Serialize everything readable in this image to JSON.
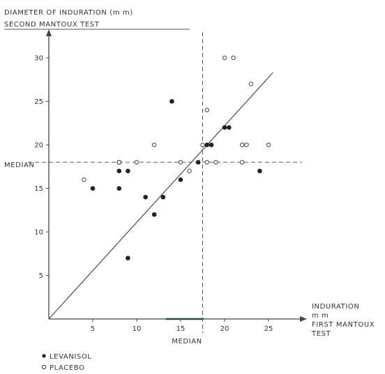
{
  "chart_data": {
    "type": "scatter",
    "ylabel_line1": "DIAMETER OF INDURATION (m m)",
    "ylabel_line2": "SECOND MANTOUX TEST",
    "xlabel_line1": "INDURATION",
    "xlabel_line2": "m m",
    "xlabel_line3": "FIRST MANTOUX",
    "xlabel_line4": "TEST",
    "median_y_label": "MEDIAN",
    "median_x_label": "MEDIAN",
    "xlim": [
      0,
      28
    ],
    "ylim": [
      0,
      33
    ],
    "x_ticks": [
      5,
      10,
      15,
      20,
      25
    ],
    "y_ticks": [
      5,
      10,
      15,
      20,
      25,
      30
    ],
    "median_x": 17.5,
    "median_y": 18,
    "reference_line": {
      "from": [
        0,
        0
      ],
      "to": [
        25.5,
        28.3
      ]
    },
    "grid": false,
    "legend_position": "bottom-left",
    "series": [
      {
        "name": "LEVANISOL",
        "marker": "filled",
        "points": [
          [
            5,
            15
          ],
          [
            8,
            15
          ],
          [
            8,
            17
          ],
          [
            9,
            17
          ],
          [
            8,
            18
          ],
          [
            9,
            7
          ],
          [
            11,
            14
          ],
          [
            12,
            12
          ],
          [
            13,
            14
          ],
          [
            14,
            25
          ],
          [
            15,
            16
          ],
          [
            17,
            18
          ],
          [
            18,
            20
          ],
          [
            18.5,
            20
          ],
          [
            20,
            22
          ],
          [
            20.5,
            22
          ],
          [
            24,
            17
          ]
        ]
      },
      {
        "name": "PLACEBO",
        "marker": "open",
        "points": [
          [
            4,
            16
          ],
          [
            8,
            18
          ],
          [
            10,
            18
          ],
          [
            12,
            20
          ],
          [
            15,
            18
          ],
          [
            16,
            17
          ],
          [
            17.5,
            20
          ],
          [
            18,
            24
          ],
          [
            18,
            18
          ],
          [
            19,
            18
          ],
          [
            20,
            30
          ],
          [
            21,
            30
          ],
          [
            22,
            20
          ],
          [
            22.5,
            20
          ],
          [
            22,
            18
          ],
          [
            23,
            27
          ],
          [
            25,
            20
          ]
        ]
      }
    ]
  }
}
